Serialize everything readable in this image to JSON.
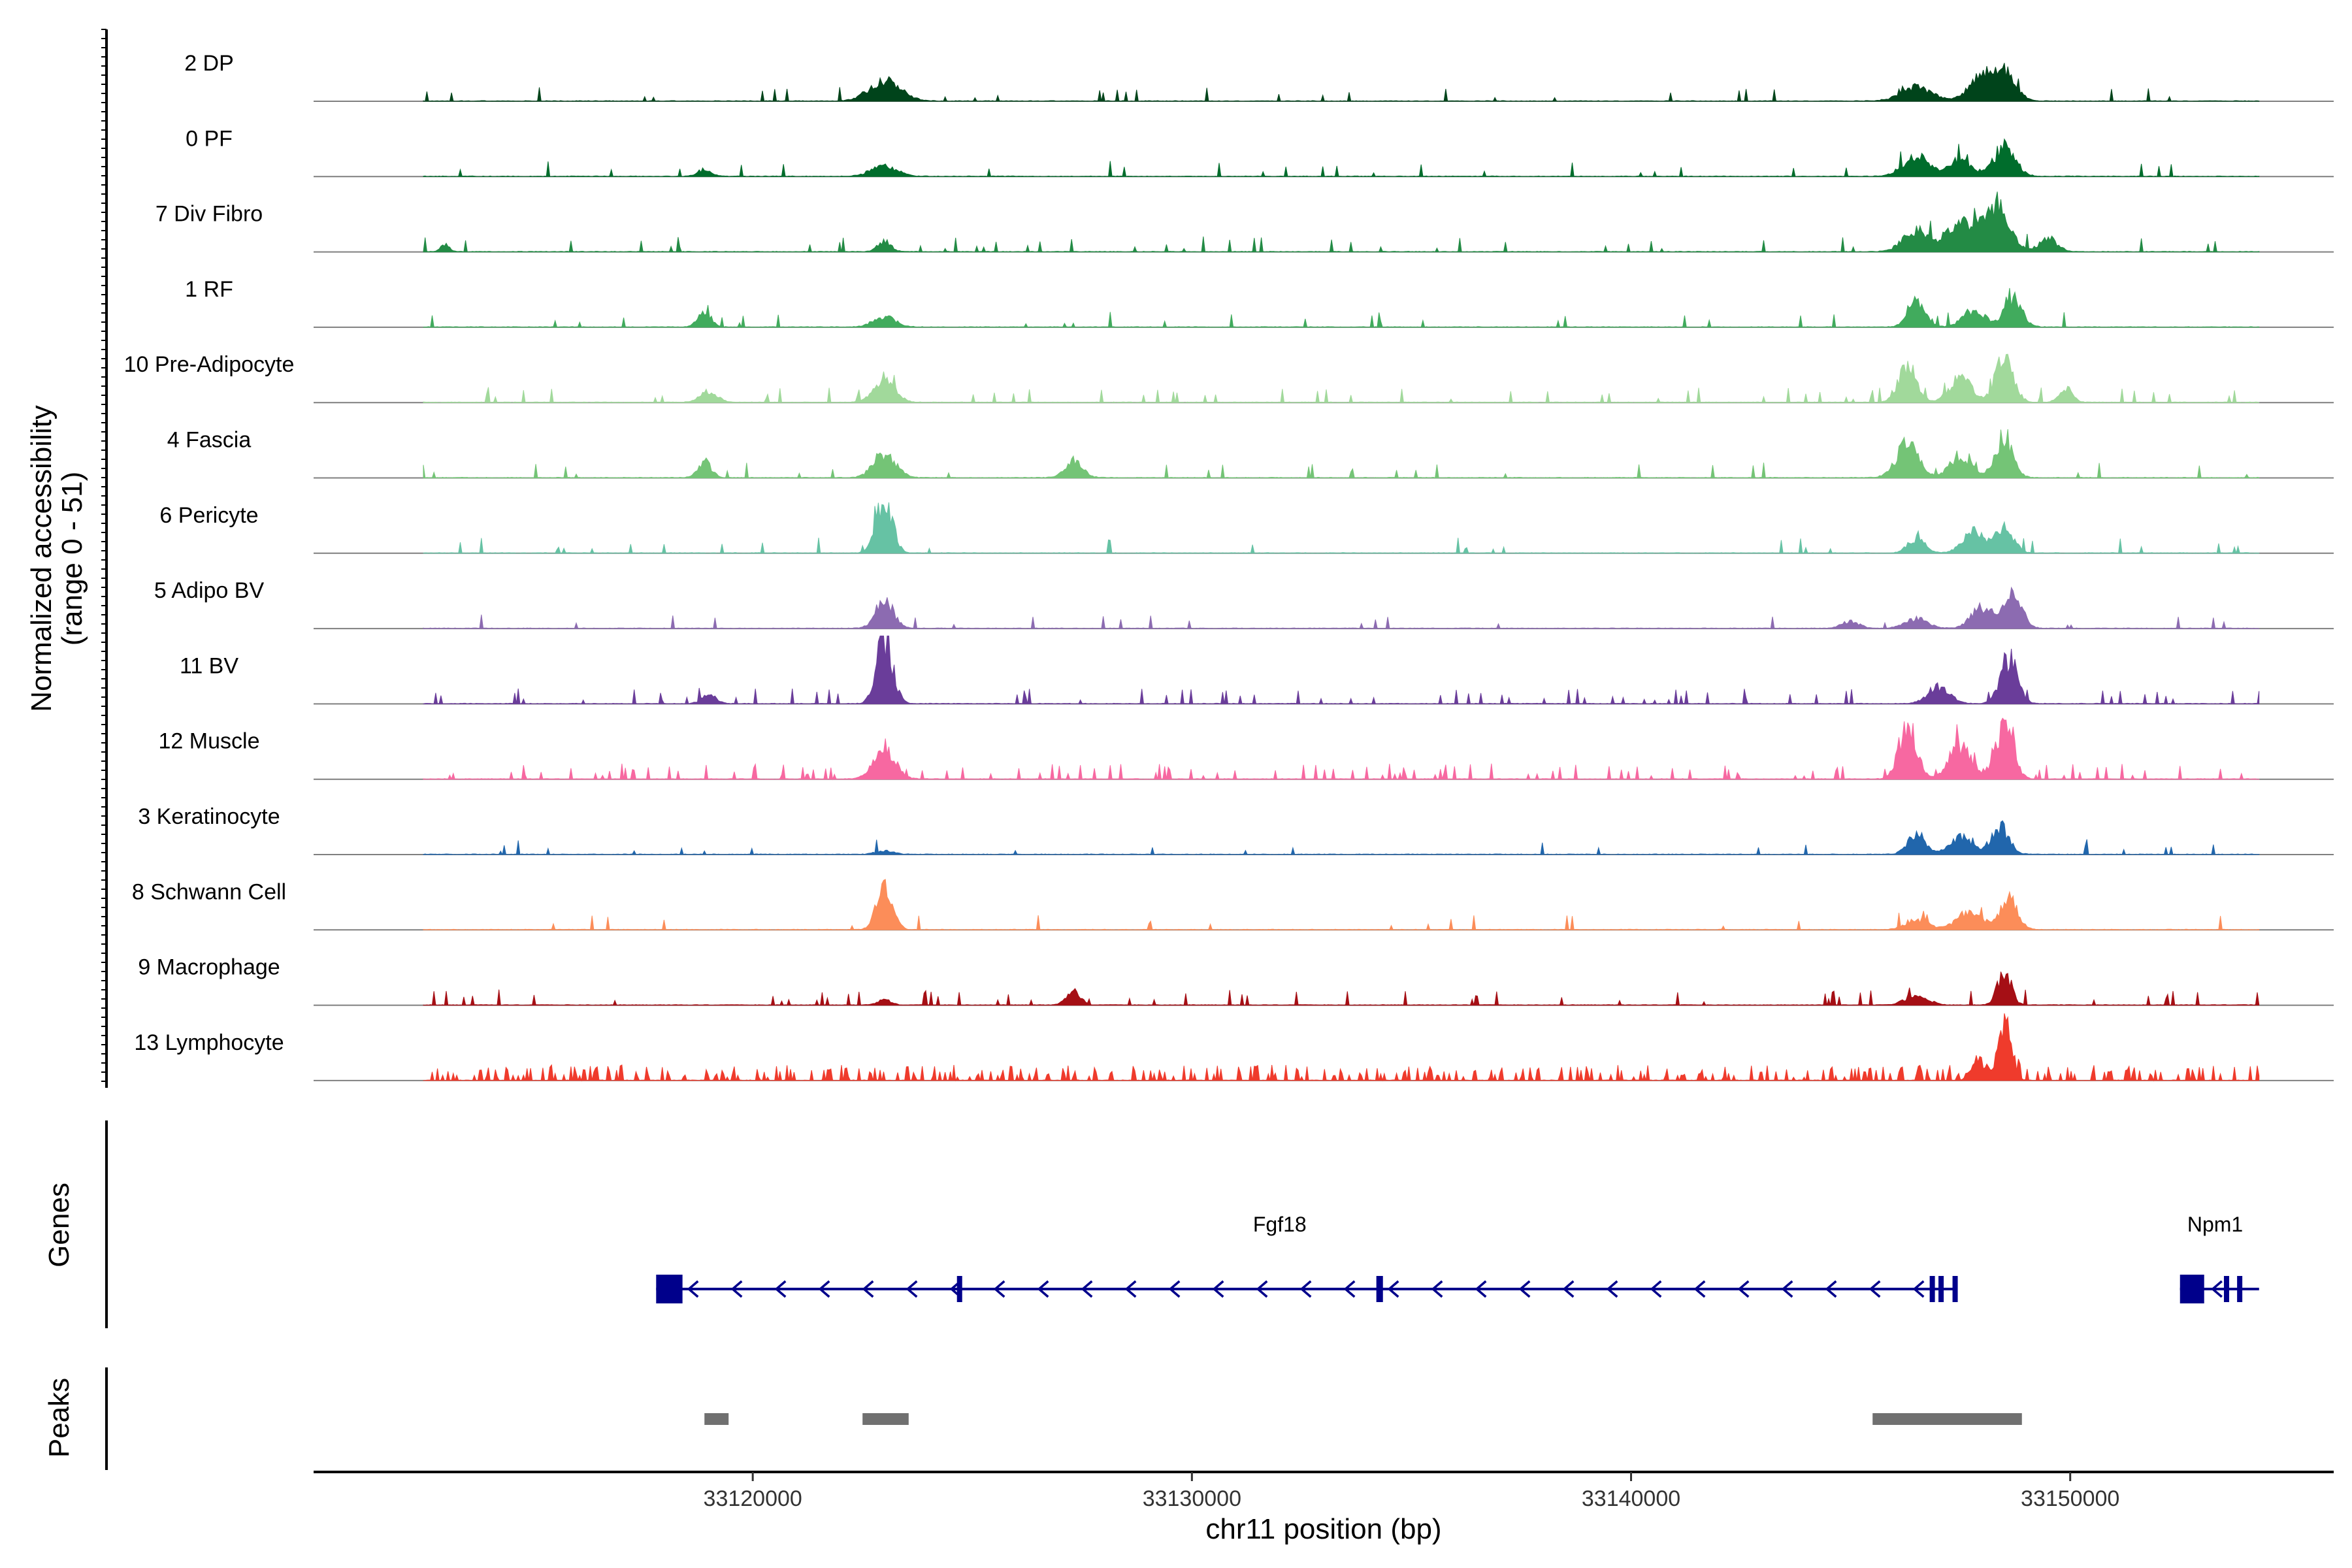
{
  "chart_data": {
    "type": "area",
    "title": "",
    "chromosome": "chr11",
    "xlabel": "chr11 position (bp)",
    "ylabel_line1": "Normalized accessibility",
    "ylabel_line2": "(range 0 - 51)",
    "y_range": [
      0,
      51
    ],
    "xlim": [
      33110000,
      33156000
    ],
    "x_ticks": [
      {
        "value": 33120000,
        "label": "33120000"
      },
      {
        "value": 33130000,
        "label": "33130000"
      },
      {
        "value": 33140000,
        "label": "33140000"
      },
      {
        "value": 33150000,
        "label": "33150000"
      }
    ],
    "genes_title": "Genes",
    "peaks_title": "Peaks",
    "tracks": [
      {
        "name": "2 DP",
        "color": "#00441b",
        "peaks": [
          [
            33123000,
            0.3,
            350
          ],
          [
            33146500,
            0.2,
            350
          ],
          [
            33148000,
            0.34,
            300
          ],
          [
            33148500,
            0.38,
            250
          ]
        ],
        "noise": 0.03,
        "seed": 1
      },
      {
        "name": "0 PF",
        "color": "#006d2c",
        "peaks": [
          [
            33118900,
            0.1,
            150
          ],
          [
            33123000,
            0.15,
            300
          ],
          [
            33146500,
            0.3,
            300
          ],
          [
            33147500,
            0.25,
            250
          ],
          [
            33148500,
            0.4,
            250
          ]
        ],
        "noise": 0.03,
        "seed": 2
      },
      {
        "name": "7 Div Fibro",
        "color": "#238b45",
        "peaks": [
          [
            33113000,
            0.1,
            100
          ],
          [
            33123000,
            0.15,
            150
          ],
          [
            33146500,
            0.3,
            300
          ],
          [
            33147500,
            0.4,
            300
          ],
          [
            33148300,
            0.65,
            300
          ],
          [
            33149500,
            0.2,
            200
          ]
        ],
        "noise": 0.05,
        "seed": 3
      },
      {
        "name": "1 RF",
        "color": "#41ab5d",
        "peaks": [
          [
            33118900,
            0.22,
            150
          ],
          [
            33123000,
            0.15,
            250
          ],
          [
            33146500,
            0.4,
            200
          ],
          [
            33147800,
            0.25,
            250
          ],
          [
            33148700,
            0.4,
            200
          ]
        ],
        "noise": 0.03,
        "seed": 4
      },
      {
        "name": "10 Pre-Adipocyte",
        "color": "#a1d99b",
        "peaks": [
          [
            33119000,
            0.15,
            200
          ],
          [
            33123000,
            0.3,
            250
          ],
          [
            33146300,
            0.55,
            200
          ],
          [
            33147500,
            0.35,
            250
          ],
          [
            33148500,
            0.68,
            200
          ],
          [
            33149900,
            0.2,
            150
          ]
        ],
        "noise": 0.06,
        "seed": 5
      },
      {
        "name": "4 Fascia",
        "color": "#74c476",
        "peaks": [
          [
            33118900,
            0.25,
            150
          ],
          [
            33123000,
            0.35,
            250
          ],
          [
            33127300,
            0.25,
            200
          ],
          [
            33146300,
            0.5,
            250
          ],
          [
            33147500,
            0.3,
            250
          ],
          [
            33148500,
            0.6,
            200
          ]
        ],
        "noise": 0.04,
        "seed": 6
      },
      {
        "name": "6 Pericyte",
        "color": "#66c2a4",
        "peaks": [
          [
            33123000,
            0.8,
            180
          ],
          [
            33146500,
            0.2,
            200
          ],
          [
            33147800,
            0.3,
            250
          ],
          [
            33148500,
            0.4,
            200
          ]
        ],
        "noise": 0.03,
        "seed": 7
      },
      {
        "name": "5 Adipo BV",
        "color": "#8c6bb1",
        "peaks": [
          [
            33123000,
            0.4,
            200
          ],
          [
            33145000,
            0.1,
            200
          ],
          [
            33146500,
            0.15,
            250
          ],
          [
            33148000,
            0.3,
            250
          ],
          [
            33148700,
            0.5,
            200
          ]
        ],
        "noise": 0.03,
        "seed": 8
      },
      {
        "name": "11 BV",
        "color": "#6a3d9a",
        "peaks": [
          [
            33123000,
            0.95,
            180
          ],
          [
            33119000,
            0.15,
            150
          ],
          [
            33148600,
            0.6,
            200
          ],
          [
            33147000,
            0.25,
            250
          ]
        ],
        "noise": 0.08,
        "seed": 9
      },
      {
        "name": "12 Muscle",
        "color": "#f768a1",
        "peaks": [
          [
            33123000,
            0.4,
            250
          ],
          [
            33146300,
            0.8,
            200
          ],
          [
            33147500,
            0.5,
            250
          ],
          [
            33148500,
            0.75,
            200
          ]
        ],
        "noise": 0.12,
        "seed": 10
      },
      {
        "name": "3 Keratinocyte",
        "color": "#2166ac",
        "peaks": [
          [
            33123000,
            0.05,
            200
          ],
          [
            33146500,
            0.3,
            200
          ],
          [
            33147500,
            0.25,
            250
          ],
          [
            33148400,
            0.4,
            200
          ]
        ],
        "noise": 0.02,
        "seed": 11
      },
      {
        "name": "8 Schwann Cell",
        "color": "#fc8d59",
        "peaks": [
          [
            33123000,
            0.6,
            180
          ],
          [
            33146500,
            0.15,
            250
          ],
          [
            33147700,
            0.25,
            300
          ],
          [
            33148600,
            0.45,
            200
          ]
        ],
        "noise": 0.03,
        "seed": 12
      },
      {
        "name": "9 Macrophage",
        "color": "#a50f15",
        "peaks": [
          [
            33127300,
            0.22,
            150
          ],
          [
            33123000,
            0.08,
            150
          ],
          [
            33146500,
            0.15,
            250
          ],
          [
            33148500,
            0.5,
            150
          ]
        ],
        "noise": 0.06,
        "seed": 13
      },
      {
        "name": "13 Lymphocyte",
        "color": "#ef3b2c",
        "peaks": [
          [
            33148500,
            0.8,
            150
          ],
          [
            33147900,
            0.3,
            150
          ]
        ],
        "noise": 0.25,
        "seed": 14
      }
    ],
    "genes": [
      {
        "name": "Fgf18",
        "start": 33117800,
        "end": 33147400,
        "strand": "-",
        "label_pos": 33132000,
        "color": "#00008b",
        "exons": [
          [
            33117800,
            33118400
          ],
          [
            33124650,
            33124750
          ],
          [
            33134200,
            33134350
          ],
          [
            33146800,
            33146880
          ],
          [
            33147000,
            33147080
          ],
          [
            33147320,
            33147420
          ]
        ]
      },
      {
        "name": "Npm1",
        "start": 33152500,
        "end": 33154300,
        "strand": "-",
        "label_pos": 33153300,
        "color": "#00008b",
        "exons": [
          [
            33152500,
            33153050
          ],
          [
            33153500,
            33153560
          ],
          [
            33153800,
            33153860
          ]
        ]
      }
    ],
    "peaks_regions": [
      [
        33118900,
        33119450
      ],
      [
        33122500,
        33123550
      ],
      [
        33145500,
        33148900
      ]
    ],
    "peak_color": "#707070"
  }
}
